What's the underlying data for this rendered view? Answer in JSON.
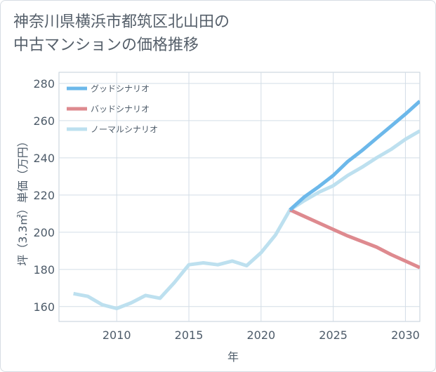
{
  "title_lines": [
    "神奈川県横浜市都筑区北山田の",
    "中古マンションの価格推移"
  ],
  "chart_data": {
    "type": "line",
    "title": "神奈川県横浜市都筑区北山田の中古マンションの価格推移",
    "xlabel": "年",
    "ylabel": "坪（3.3㎡）単価（万円）",
    "xlim": [
      2006,
      2031
    ],
    "ylim": [
      152,
      286
    ],
    "xticks": [
      2010,
      2015,
      2020,
      2025,
      2030
    ],
    "yticks": [
      160,
      180,
      200,
      220,
      240,
      260,
      280
    ],
    "grid": true,
    "legend_position": "top-left",
    "series": [
      {
        "name": "グッドシナリオ",
        "color": "#6cb8ea",
        "x": [
          2022,
          2023,
          2024,
          2025,
          2026,
          2027,
          2028,
          2029,
          2030,
          2031
        ],
        "values": [
          212,
          219,
          224.5,
          230.5,
          238,
          244,
          250.5,
          257,
          263.5,
          270.5
        ]
      },
      {
        "name": "バッドシナリオ",
        "color": "#de8a8f",
        "x": [
          2022,
          2023,
          2024,
          2025,
          2026,
          2027,
          2028,
          2029,
          2030,
          2031
        ],
        "values": [
          212,
          208.5,
          205,
          201.5,
          198,
          195,
          192,
          188,
          184.5,
          181
        ]
      },
      {
        "name": "ノーマルシナリオ",
        "color": "#bde0ef",
        "x": [
          2007,
          2008,
          2009,
          2010,
          2011,
          2012,
          2013,
          2014,
          2015,
          2016,
          2017,
          2018,
          2019,
          2020,
          2021,
          2022,
          2023,
          2024,
          2025,
          2026,
          2027,
          2028,
          2029,
          2030,
          2031
        ],
        "values": [
          167,
          165.5,
          161,
          159,
          162,
          166,
          164.5,
          173,
          182.5,
          183.5,
          182.5,
          184.5,
          182,
          189,
          198.5,
          212,
          217,
          221.5,
          225,
          230.5,
          235,
          240,
          244.5,
          250,
          254.5
        ]
      }
    ]
  }
}
